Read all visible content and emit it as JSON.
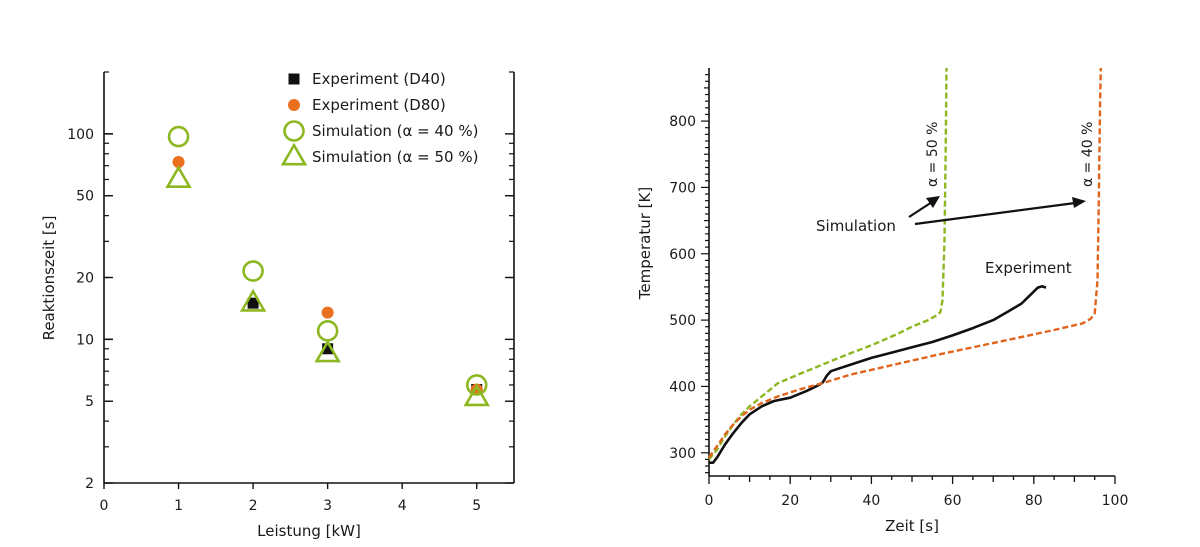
{
  "chart_data": [
    {
      "type": "scatter",
      "xlabel": "Leistung [kW]",
      "ylabel": "Reaktionszeit [s]",
      "xlim": [
        0,
        5.5
      ],
      "xticks": [
        0,
        1,
        2,
        3,
        4,
        5
      ],
      "ylim": [
        2,
        200
      ],
      "yscale": "log",
      "yticks": [
        2,
        5,
        10,
        20,
        50,
        100
      ],
      "legend_position": "top-right",
      "series": [
        {
          "name": "Experiment (D40)",
          "marker": "filled-square",
          "color": "#111111",
          "x": [
            2,
            3,
            5
          ],
          "y": [
            15,
            9,
            5.7
          ]
        },
        {
          "name": "Experiment (D80)",
          "marker": "filled-circle",
          "color": "#e8701f",
          "x": [
            1,
            3,
            5
          ],
          "y": [
            73,
            13.5,
            5.7
          ]
        },
        {
          "name": "Simulation (α = 40 %)",
          "marker": "open-circle",
          "color": "#8db721",
          "x": [
            1,
            2,
            3,
            5
          ],
          "y": [
            97,
            21.5,
            11,
            6
          ]
        },
        {
          "name": "Simulation (α = 50 %)",
          "marker": "open-triangle",
          "color": "#8db721",
          "x": [
            1,
            2,
            3,
            5
          ],
          "y": [
            60,
            15,
            8.5,
            5.2
          ]
        }
      ]
    },
    {
      "type": "line",
      "xlabel": "Zeit [s]",
      "ylabel": "Temperatur [K]",
      "xlim": [
        0,
        100
      ],
      "xticks": [
        0,
        20,
        40,
        60,
        80,
        100
      ],
      "ylim": [
        265,
        880
      ],
      "yticks": [
        300,
        400,
        500,
        600,
        700,
        800
      ],
      "series": [
        {
          "name": "Experiment",
          "style": "solid",
          "color": "#111111",
          "x": [
            0,
            1,
            2,
            4,
            6,
            8,
            10,
            13,
            16,
            20,
            24,
            27,
            28,
            29,
            30,
            35,
            40,
            45,
            50,
            55,
            60,
            65,
            70,
            74,
            77,
            80,
            81,
            82,
            83
          ],
          "y": [
            285,
            285,
            293,
            313,
            330,
            345,
            358,
            370,
            378,
            383,
            393,
            402,
            406,
            416,
            423,
            433,
            443,
            451,
            459,
            467,
            477,
            488,
            500,
            514,
            525,
            543,
            549,
            551,
            549
          ]
        },
        {
          "name": "α = 50 %",
          "style": "dashed",
          "color": "#8db721",
          "x": [
            0,
            2,
            4,
            6,
            8,
            10,
            13,
            17,
            22,
            28,
            34,
            40,
            46,
            50,
            54,
            56,
            57,
            57.5,
            58,
            58.3,
            58.5
          ],
          "y": [
            290,
            305,
            325,
            343,
            358,
            370,
            385,
            405,
            418,
            433,
            448,
            462,
            478,
            490,
            500,
            507,
            512,
            530,
            620,
            760,
            880
          ]
        },
        {
          "name": "α = 40 %",
          "style": "dashed",
          "color": "#e0641c",
          "x": [
            0,
            2,
            4,
            6,
            8,
            10,
            13,
            17,
            22,
            28,
            35,
            45,
            55,
            65,
            75,
            85,
            92,
            94,
            95,
            95.7,
            96,
            96.3,
            96.5
          ],
          "y": [
            293,
            310,
            328,
            343,
            355,
            365,
            375,
            385,
            395,
            405,
            418,
            432,
            446,
            459,
            472,
            485,
            495,
            502,
            510,
            560,
            680,
            820,
            880
          ]
        }
      ],
      "annotations": {
        "simulation_label": "Simulation",
        "experiment_label": "Experiment",
        "alpha50_label": "α = 50 %",
        "alpha40_label": "α = 40 %"
      }
    }
  ]
}
